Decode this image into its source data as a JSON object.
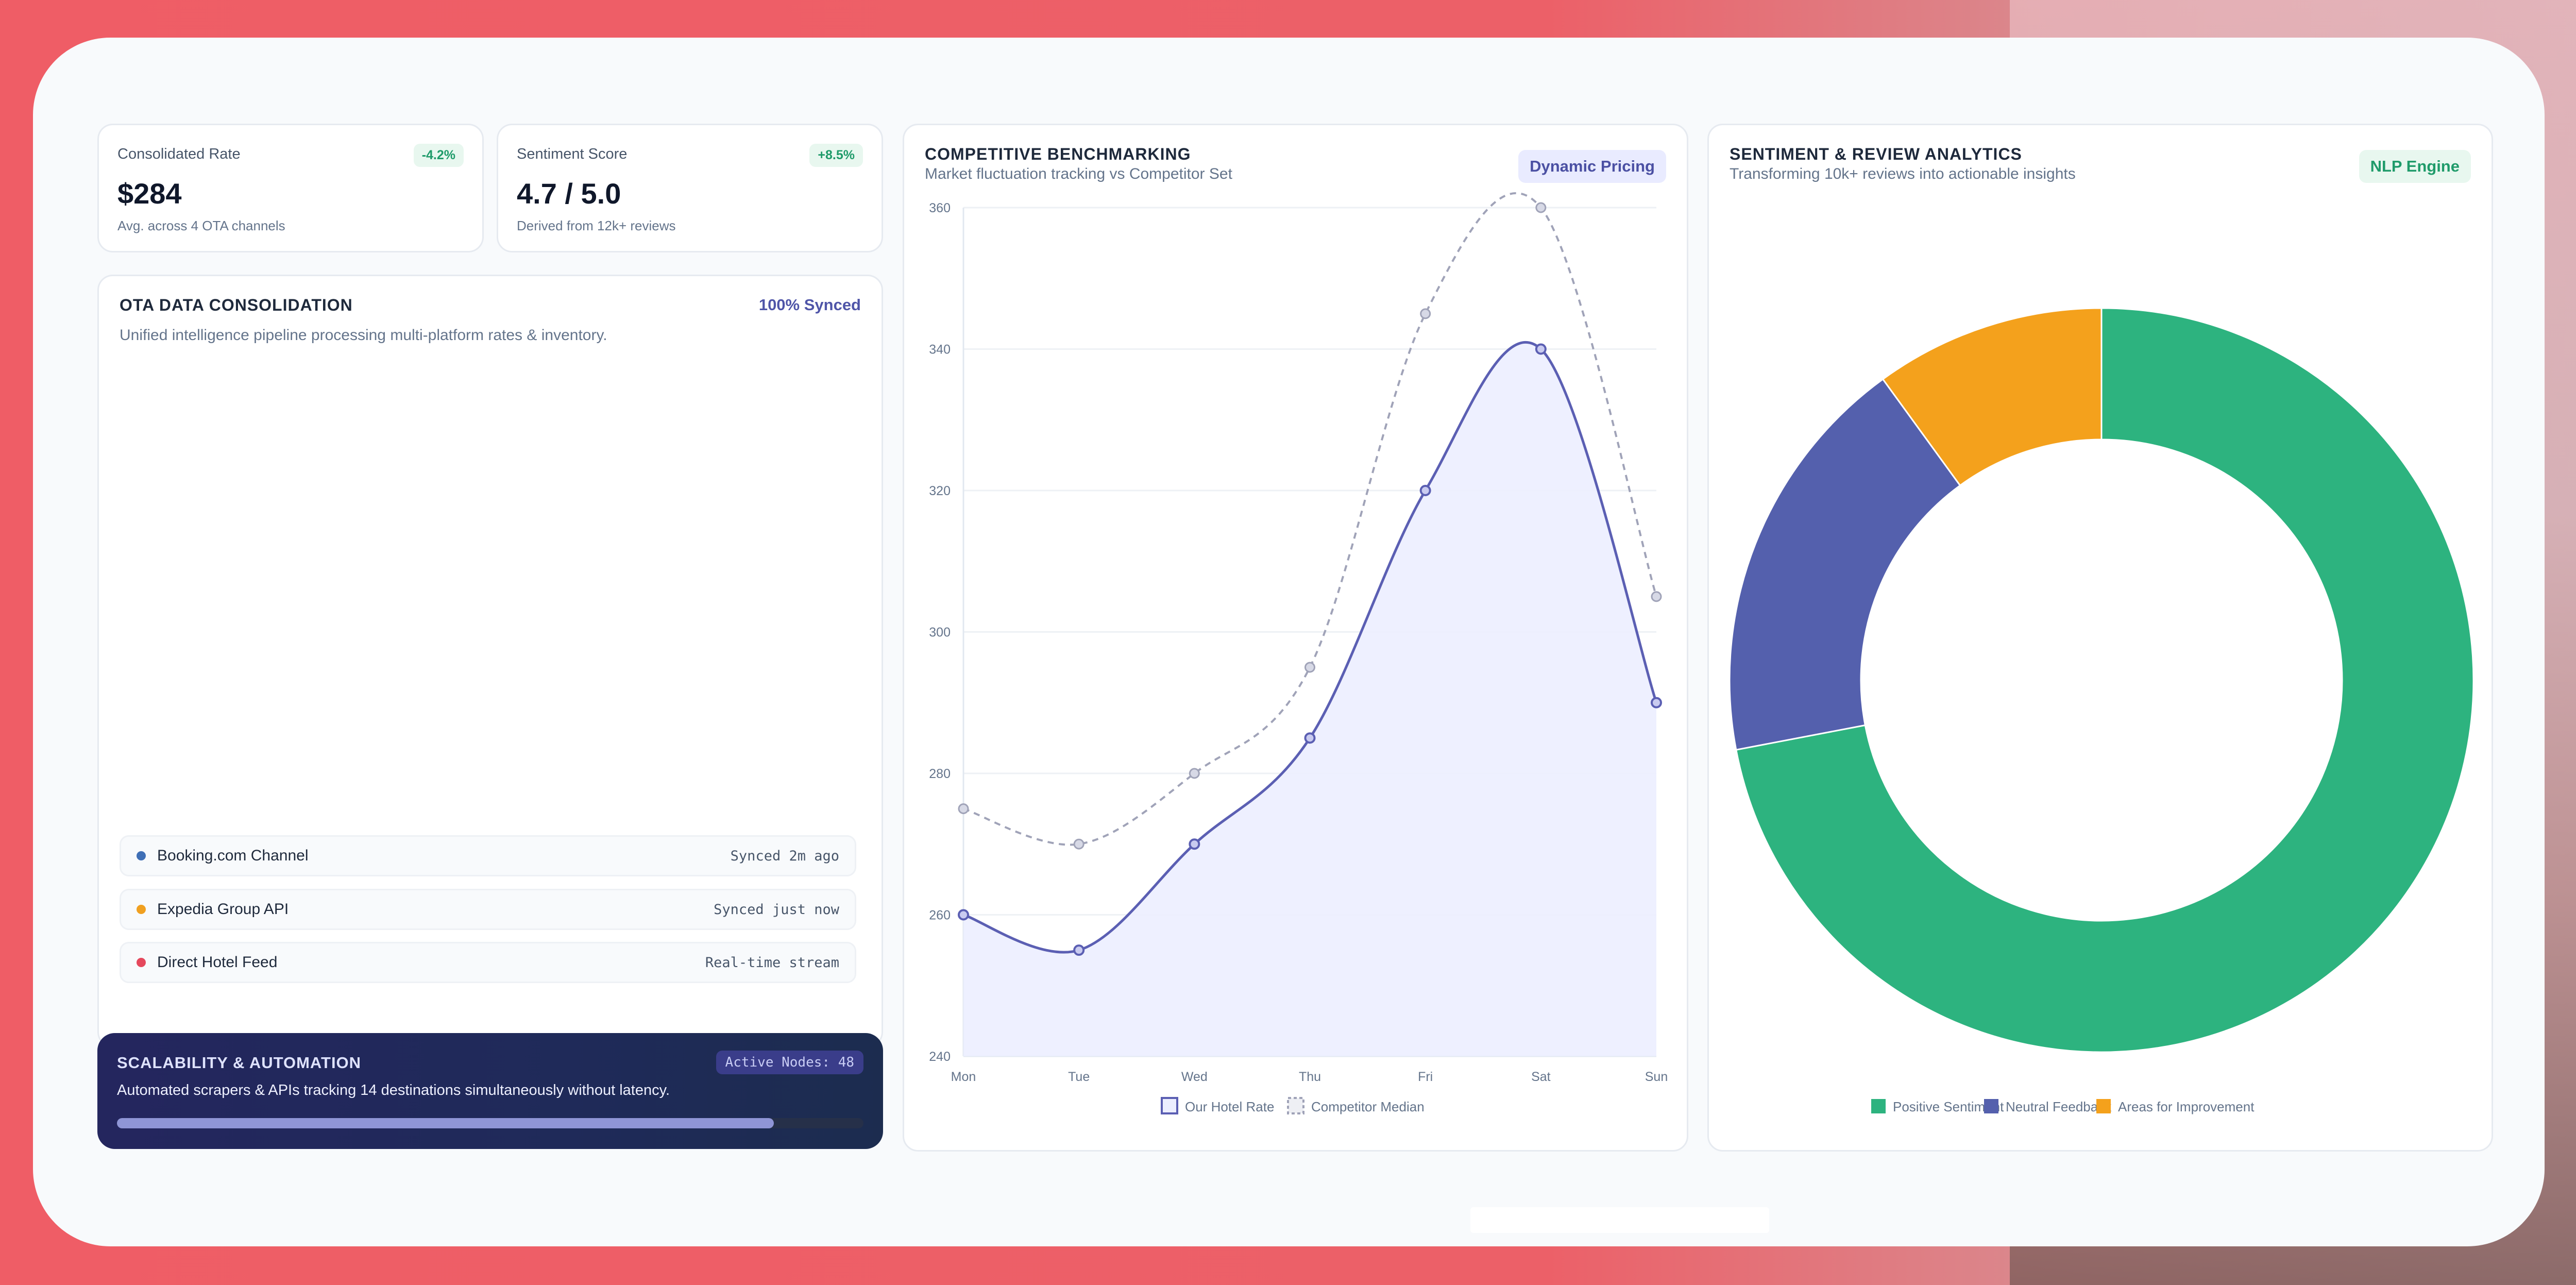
{
  "kpi": {
    "rate": {
      "title": "Consolidated Rate",
      "value": "$284",
      "sub": "Avg. across 4 OTA channels",
      "badge": "-4.2%"
    },
    "sentiment": {
      "title": "Sentiment Score",
      "value": "4.7 / 5.0",
      "sub": "Derived from 12k+ reviews",
      "badge": "+8.5%"
    }
  },
  "ota": {
    "title": "OTA DATA CONSOLIDATION",
    "status": "100% Synced",
    "desc": "Unified intelligence pipeline processing multi-platform rates & inventory.",
    "feeds": [
      {
        "name": "Booking.com Channel",
        "status": "Synced 2m ago",
        "color": "#3f6fb6"
      },
      {
        "name": "Expedia Group API",
        "status": "Synced just now",
        "color": "#f0a020"
      },
      {
        "name": "Direct Hotel Feed",
        "status": "Real-time stream",
        "color": "#e5485c"
      }
    ]
  },
  "scalability": {
    "title": "SCALABILITY & AUTOMATION",
    "nodes": "Active Nodes: 48",
    "desc": "Automated scrapers & APIs tracking 14 destinations simultaneously without latency.",
    "progress": 0.88
  },
  "bench": {
    "title": "COMPETITIVE BENCHMARKING",
    "sub": "Market fluctuation tracking vs Competitor Set",
    "pill": "Dynamic Pricing"
  },
  "sentiment_card": {
    "title": "SENTIMENT & REVIEW ANALYTICS",
    "sub": "Transforming 10k+ reviews into actionable insights",
    "pill": "NLP Engine"
  },
  "chart_data": [
    {
      "type": "line",
      "categories": [
        "Mon",
        "Tue",
        "Wed",
        "Thu",
        "Fri",
        "Sat",
        "Sun"
      ],
      "ylim": [
        240,
        360
      ],
      "yticks": [
        240,
        260,
        280,
        300,
        320,
        340,
        360
      ],
      "series": [
        {
          "name": "Our Hotel Rate",
          "values": [
            260,
            255,
            270,
            285,
            320,
            340,
            290
          ],
          "color": "#5b5fb3"
        },
        {
          "name": "Competitor Median",
          "values": [
            275,
            270,
            280,
            295,
            345,
            360,
            305
          ],
          "color": "#a0a3b8"
        }
      ],
      "grid": true,
      "legend": "bottom"
    },
    {
      "type": "pie",
      "donut": true,
      "labels": [
        "Positive Sentiment",
        "Neutral Feedback",
        "Areas for Improvement"
      ],
      "values": [
        72,
        18,
        10
      ],
      "colors": [
        "#2db37f",
        "#5460ad",
        "#f4a11c"
      ],
      "legend": "bottom"
    }
  ]
}
